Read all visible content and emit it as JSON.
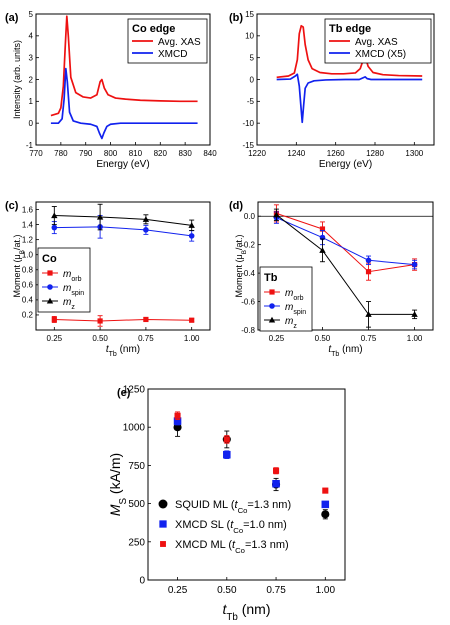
{
  "chart_data": [
    {
      "panel_label": "(a)",
      "type": "line",
      "xlabel": "Energy (eV)",
      "ylabel": "Intensity (arb. units)",
      "xlim": [
        770,
        840
      ],
      "ylim": [
        -1,
        5
      ],
      "xticks": [
        770,
        780,
        790,
        800,
        810,
        820,
        830,
        840
      ],
      "yticks": [
        -1,
        0,
        1,
        2,
        3,
        4,
        5
      ],
      "legend_title": "Co edge",
      "legend_position": "top-right",
      "series": [
        {
          "name": "Avg. XAS",
          "color": "#ee1111",
          "x": [
            776,
            779,
            780,
            781,
            781.8,
            782.4,
            783,
            784,
            786,
            789,
            792,
            794.5,
            795.8,
            796.5,
            797.5,
            799,
            802,
            806,
            812,
            820,
            828,
            835
          ],
          "y": [
            0.35,
            0.45,
            0.7,
            1.7,
            3.6,
            4.9,
            4.0,
            2.1,
            1.4,
            1.2,
            1.15,
            1.3,
            1.9,
            2.0,
            1.6,
            1.3,
            1.15,
            1.1,
            1.05,
            1.02,
            1.0,
            1.0
          ]
        },
        {
          "name": "XMCD",
          "color": "#1122ee",
          "x": [
            776,
            779,
            780.5,
            781.3,
            782.0,
            782.6,
            783.5,
            785,
            788,
            792,
            794.5,
            795.5,
            796.5,
            797.3,
            798.5,
            800,
            804,
            810,
            820,
            835
          ],
          "y": [
            0.0,
            0.0,
            0.2,
            1.1,
            2.5,
            1.9,
            0.5,
            0.1,
            0.0,
            -0.05,
            -0.15,
            -0.45,
            -0.7,
            -0.45,
            -0.15,
            -0.05,
            0.0,
            0.0,
            0.0,
            0.0
          ]
        }
      ]
    },
    {
      "panel_label": "(b)",
      "type": "line",
      "xlabel": "Energy (eV)",
      "ylabel": "",
      "xlim": [
        1220,
        1310
      ],
      "ylim": [
        -15,
        15
      ],
      "xticks": [
        1220,
        1240,
        1260,
        1280,
        1300
      ],
      "yticks": [
        -15,
        -10,
        -5,
        0,
        5,
        10,
        15
      ],
      "legend_title": "Tb edge",
      "legend_position": "top-right",
      "series": [
        {
          "name": "Avg. XAS",
          "color": "#ee1111",
          "x": [
            1230,
            1236,
            1239,
            1240.5,
            1241.5,
            1242.5,
            1243.5,
            1244.5,
            1246,
            1248,
            1252,
            1258,
            1264,
            1270,
            1272.5,
            1274,
            1275,
            1276.5,
            1279,
            1284,
            1292,
            1304
          ],
          "y": [
            0.5,
            0.8,
            1.5,
            4.5,
            10.5,
            12.3,
            12.0,
            8.0,
            4.5,
            2.5,
            1.6,
            1.3,
            1.3,
            1.5,
            2.5,
            4.5,
            5.3,
            3.0,
            1.6,
            1.1,
            0.9,
            0.8
          ]
        },
        {
          "name": "XMCD (X5)",
          "color": "#1122ee",
          "x": [
            1230,
            1237,
            1239.5,
            1240.5,
            1241.5,
            1242.3,
            1243.0,
            1243.7,
            1244.5,
            1246,
            1249,
            1255,
            1265,
            1272,
            1274,
            1275,
            1276,
            1278,
            1285,
            1304
          ],
          "y": [
            0.0,
            0.1,
            0.8,
            1.2,
            -1.5,
            -6.0,
            -9.8,
            -6.0,
            -2.0,
            -0.8,
            -0.3,
            -0.1,
            0.0,
            0.0,
            0.4,
            0.6,
            0.2,
            0.0,
            0.0,
            0.0
          ]
        }
      ]
    },
    {
      "panel_label": "(c)",
      "type": "line",
      "xlabel_main": "t",
      "xlabel_sub": "Tb",
      "xlabel_tail": " (nm)",
      "ylabel_main": "Moment (μ",
      "ylabel_sub": "B",
      "ylabel_tail": "/at.)",
      "xlim": [
        0.15,
        1.1
      ],
      "ylim": [
        0,
        1.7
      ],
      "xticks": [
        0.25,
        0.5,
        0.75,
        1.0
      ],
      "xtick_labels": [
        "0.25",
        "0.50",
        "0.75",
        "1.00"
      ],
      "yticks": [
        0.2,
        0.4,
        0.6,
        0.8,
        1.0,
        1.2,
        1.4,
        1.6
      ],
      "ytick_labels": [
        "0.2",
        "0.4",
        "0.6",
        "0.8",
        "1.0",
        "1.2",
        "1.4",
        "1.6"
      ],
      "legend_title": "Co",
      "legend_position": "left",
      "series": [
        {
          "label_main": "m",
          "label_sub": "orb",
          "color": "#ee1111",
          "marker": "square",
          "x": [
            0.25,
            0.5,
            0.75,
            1.0
          ],
          "y": [
            0.14,
            0.12,
            0.14,
            0.13
          ],
          "err": [
            0.04,
            0.07,
            0.02,
            0.02
          ]
        },
        {
          "label_main": "m",
          "label_sub": "spin",
          "color": "#1122ee",
          "marker": "circle",
          "x": [
            0.25,
            0.5,
            0.75,
            1.0
          ],
          "y": [
            1.36,
            1.37,
            1.33,
            1.25
          ],
          "err": [
            0.08,
            0.15,
            0.06,
            0.07
          ]
        },
        {
          "label_main": "m",
          "label_sub": "z",
          "color": "#000000",
          "marker": "triangle",
          "x": [
            0.25,
            0.5,
            0.75,
            1.0
          ],
          "y": [
            1.52,
            1.5,
            1.47,
            1.39
          ],
          "err": [
            0.12,
            0.17,
            0.06,
            0.07
          ]
        }
      ]
    },
    {
      "panel_label": "(d)",
      "type": "line",
      "xlabel_main": "t",
      "xlabel_sub": "Tb",
      "xlabel_tail": " (nm)",
      "ylabel_main": "Moment (μ",
      "ylabel_sub": "B",
      "ylabel_tail": "/at.)",
      "xlim": [
        0.15,
        1.1
      ],
      "ylim": [
        -0.8,
        0.1
      ],
      "xticks": [
        0.25,
        0.5,
        0.75,
        1.0
      ],
      "xtick_labels": [
        "0.25",
        "0.50",
        "0.75",
        "1.00"
      ],
      "yticks": [
        -0.8,
        -0.6,
        -0.4,
        -0.2,
        0.0
      ],
      "ytick_labels": [
        "-0.8",
        "-0.6",
        "-0.4",
        "-0.2",
        "0.0"
      ],
      "legend_title": "Tb",
      "legend_position": "bottom-left",
      "series": [
        {
          "label_main": "m",
          "label_sub": "orb",
          "color": "#ee1111",
          "marker": "square",
          "x": [
            0.25,
            0.5,
            0.75,
            1.0
          ],
          "y": [
            0.02,
            -0.09,
            -0.39,
            -0.34
          ],
          "err": [
            0.06,
            0.05,
            0.06,
            0.04
          ]
        },
        {
          "label_main": "m",
          "label_sub": "spin",
          "color": "#1122ee",
          "marker": "circle",
          "x": [
            0.25,
            0.5,
            0.75,
            1.0
          ],
          "y": [
            -0.01,
            -0.15,
            -0.31,
            -0.34
          ],
          "err": [
            0.04,
            0.05,
            0.03,
            0.03
          ]
        },
        {
          "label_main": "m",
          "label_sub": "z",
          "color": "#000000",
          "marker": "triangle",
          "x": [
            0.25,
            0.5,
            0.75,
            1.0
          ],
          "y": [
            0.01,
            -0.24,
            -0.69,
            -0.69
          ],
          "err": [
            0.04,
            0.08,
            0.09,
            0.03
          ]
        }
      ]
    },
    {
      "panel_label": "(e)",
      "type": "scatter",
      "xlabel_main": "t",
      "xlabel_sub": "Tb",
      "xlabel_tail": " (nm)",
      "ylabel_main": "M",
      "ylabel_sub": "S",
      "ylabel_tail": " (kA/m)",
      "xlim": [
        0.1,
        1.1
      ],
      "ylim": [
        0,
        1250
      ],
      "xticks": [
        0.25,
        0.5,
        0.75,
        1.0
      ],
      "xtick_labels": [
        "0.25",
        "0.50",
        "0.75",
        "1.00"
      ],
      "yticks": [
        0,
        250,
        500,
        750,
        1000,
        1250
      ],
      "ytick_labels": [
        "0",
        "250",
        "500",
        "750",
        "1000",
        "1250"
      ],
      "legend_position": "bottom-left",
      "series": [
        {
          "label_pre": "SQUID ML (",
          "label_main": "t",
          "label_sub": "Co",
          "label_post": "=1.3 nm)",
          "color": "#000000",
          "marker": "circle",
          "x": [
            0.25,
            0.5,
            0.75,
            1.0
          ],
          "y": [
            1000,
            920,
            625,
            430
          ],
          "err": [
            60,
            55,
            40,
            30
          ]
        },
        {
          "label_pre": "XMCD SL (",
          "label_main": "t",
          "label_sub": "Co",
          "label_post": "=1.0 nm)",
          "color": "#1122ee",
          "marker": "square",
          "x": [
            0.25,
            0.5,
            0.75,
            1.0
          ],
          "y": [
            1040,
            820,
            630,
            495
          ],
          "err": [
            25,
            25,
            20,
            15
          ]
        },
        {
          "label_pre": "XMCD ML (",
          "label_main": "t",
          "label_sub": "Co",
          "label_post": "=1.3 nm)",
          "color": "#ee1111",
          "marker": "smallsquare",
          "x": [
            0.25,
            0.5,
            0.75,
            1.0
          ],
          "y": [
            1075,
            920,
            715,
            585
          ],
          "err": [
            25,
            25,
            20,
            15
          ]
        }
      ]
    }
  ]
}
